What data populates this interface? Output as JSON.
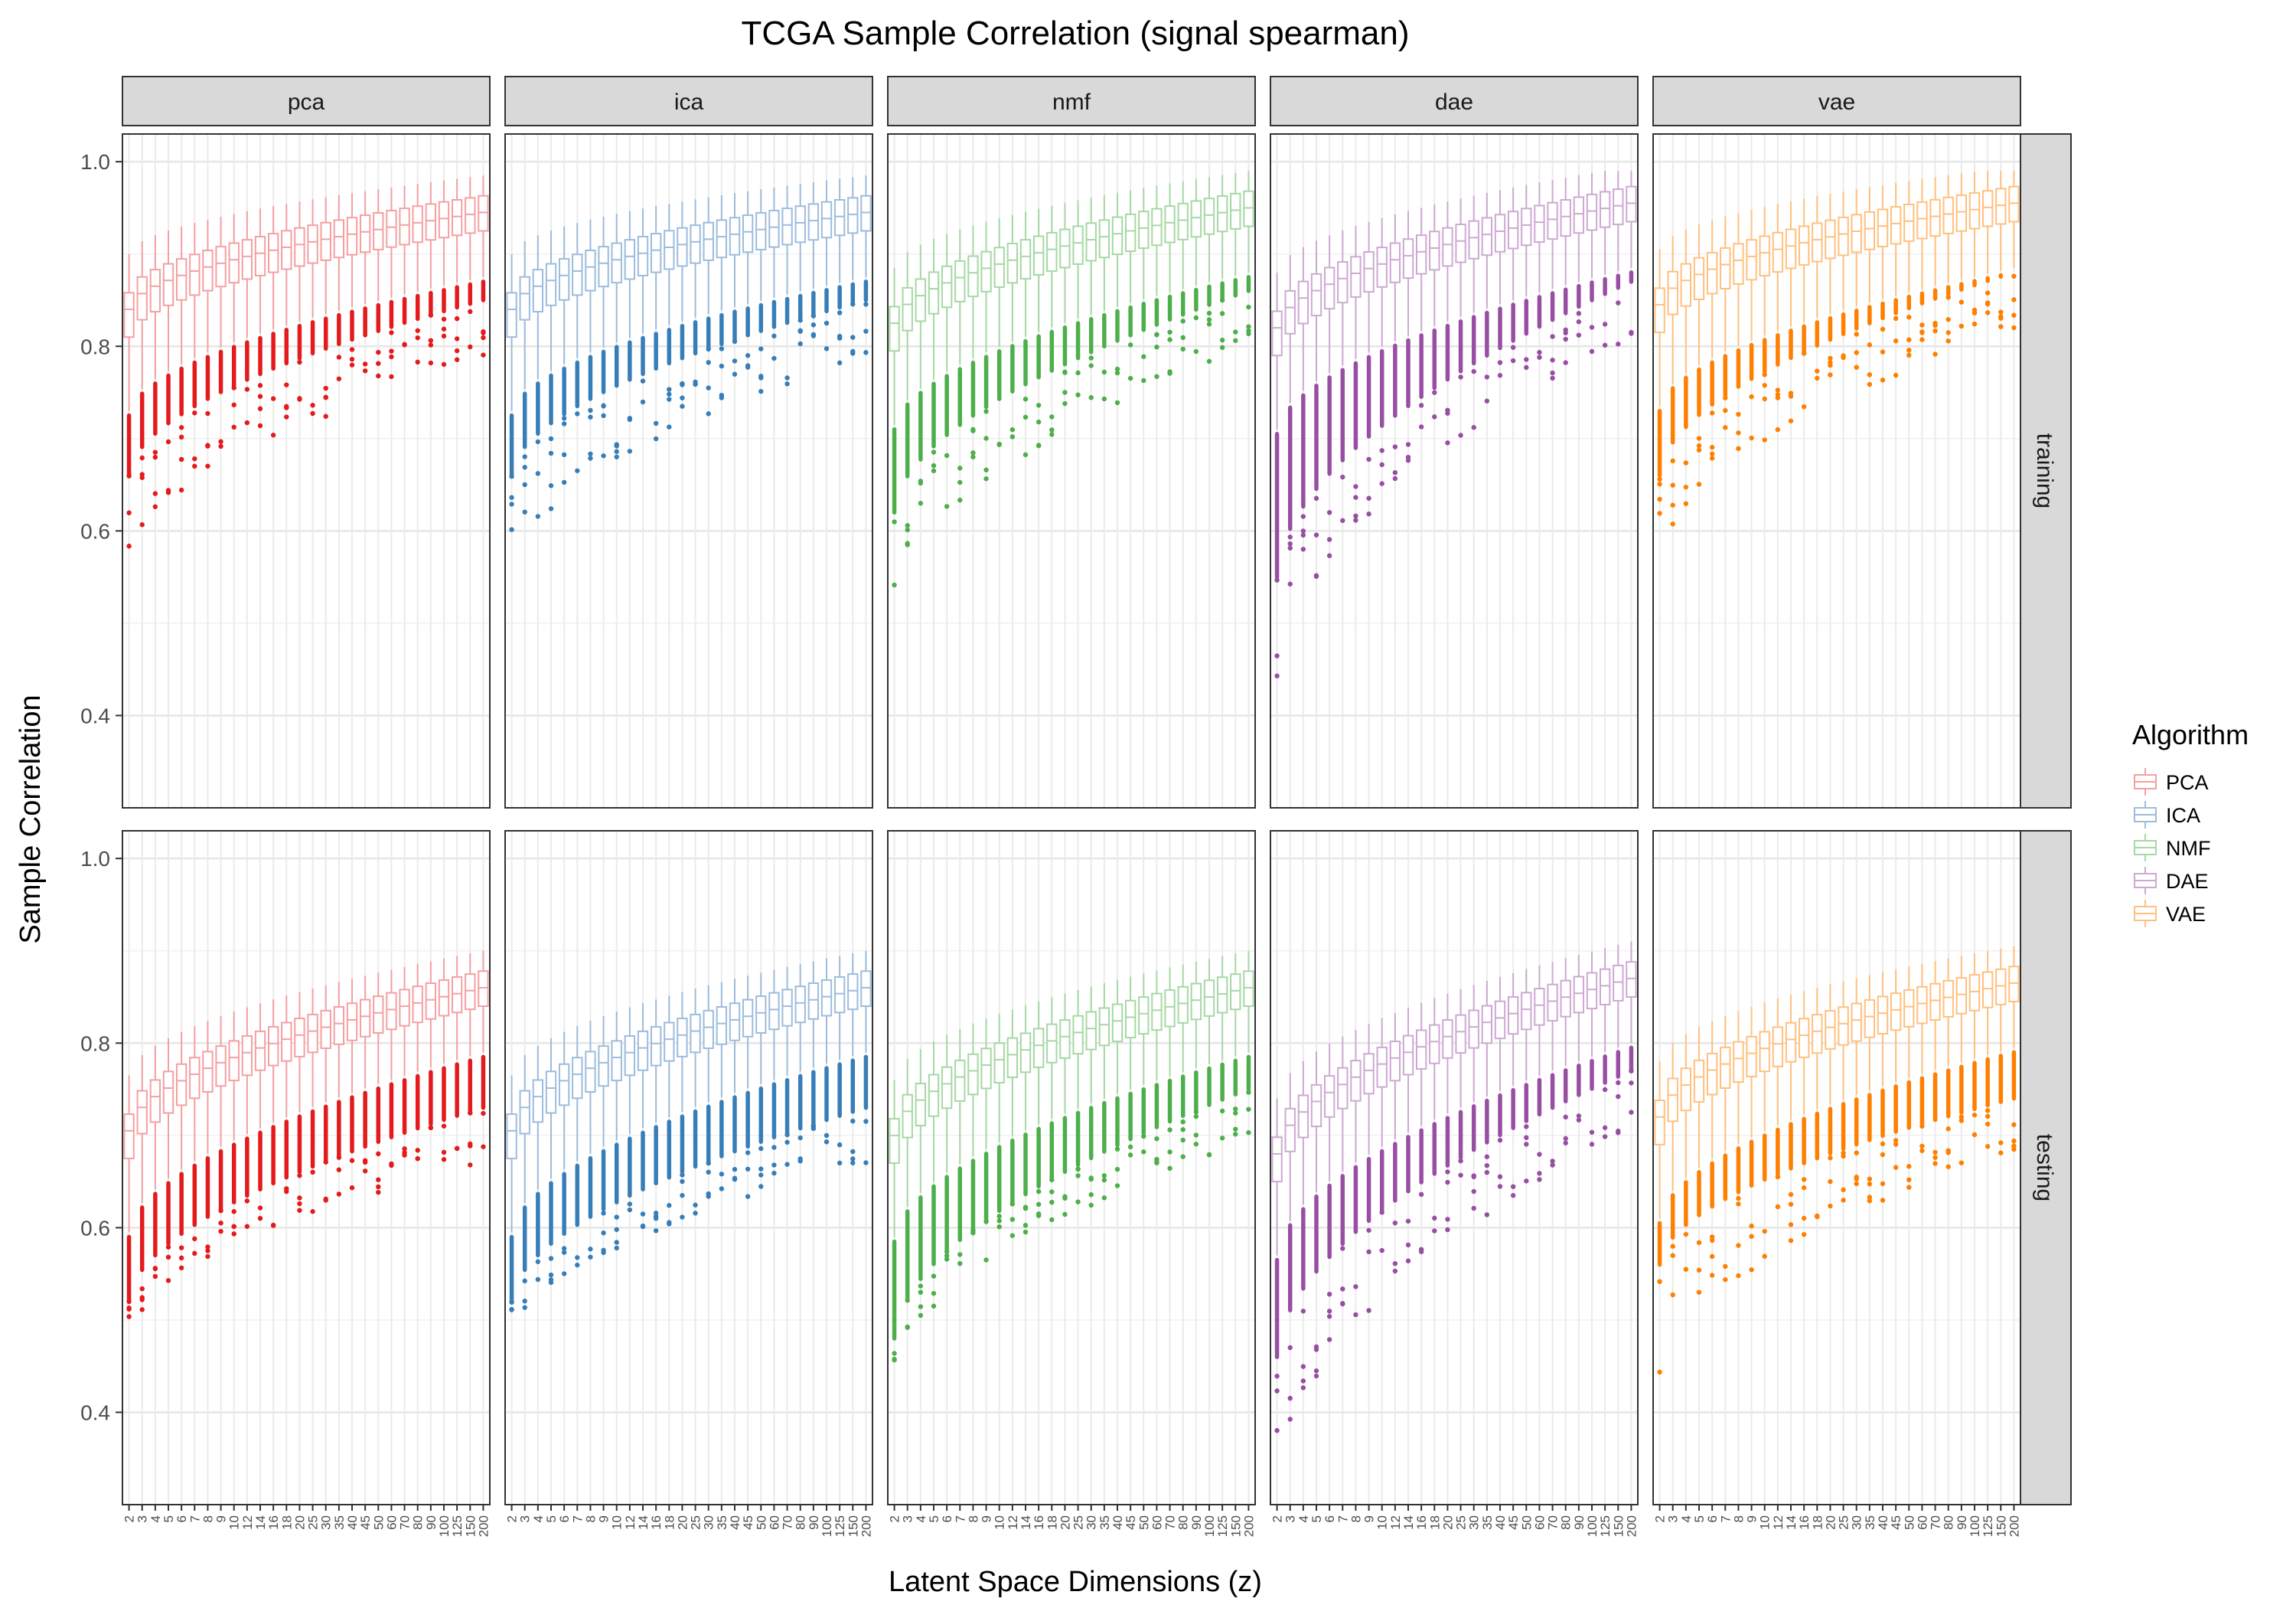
{
  "chart_data": {
    "type": "boxplot",
    "title": "TCGA Sample Correlation (signal spearman)",
    "xlabel": "Latent Space Dimensions (z)",
    "ylabel": "Sample Correlation",
    "ylim": [
      0.3,
      1.03
    ],
    "yticks": [
      0.4,
      0.6,
      0.8,
      1.0
    ],
    "ytick_labels": [
      "0.4",
      "0.6",
      "0.8",
      "1.0"
    ],
    "grid": true,
    "theme": "bw-facet-grid",
    "categories": [
      "2",
      "3",
      "4",
      "5",
      "6",
      "7",
      "8",
      "9",
      "10",
      "12",
      "14",
      "16",
      "18",
      "20",
      "25",
      "30",
      "35",
      "40",
      "45",
      "50",
      "60",
      "70",
      "80",
      "90",
      "100",
      "125",
      "150",
      "200"
    ],
    "columns": [
      "pca",
      "ica",
      "nmf",
      "dae",
      "vae"
    ],
    "rows": [
      "training",
      "testing"
    ],
    "legend": {
      "title": "Algorithm",
      "position": "right",
      "entries": [
        "PCA",
        "ICA",
        "NMF",
        "DAE",
        "VAE"
      ]
    },
    "series": [
      {
        "key": "pca",
        "name": "PCA",
        "box_color": "#F4A0A2",
        "point_color": "#E41A1C",
        "training": {
          "median_start": 0.84,
          "median_end": 0.945,
          "low_start": 0.66,
          "low_end": 0.85,
          "outlier_min_start": 0.55
        },
        "testing": {
          "median_start": 0.705,
          "median_end": 0.86,
          "low_start": 0.52,
          "low_end": 0.73,
          "outlier_min_start": 0.48
        }
      },
      {
        "key": "ica",
        "name": "ICA",
        "box_color": "#9DBCDC",
        "point_color": "#377EB8",
        "training": {
          "median_start": 0.84,
          "median_end": 0.945,
          "low_start": 0.66,
          "low_end": 0.85,
          "outlier_min_start": 0.55
        },
        "testing": {
          "median_start": 0.705,
          "median_end": 0.86,
          "low_start": 0.52,
          "low_end": 0.73,
          "outlier_min_start": 0.48
        }
      },
      {
        "key": "nmf",
        "name": "NMF",
        "box_color": "#A6D8A4",
        "point_color": "#4DAF4A",
        "training": {
          "median_start": 0.825,
          "median_end": 0.95,
          "low_start": 0.62,
          "low_end": 0.86,
          "outlier_min_start": 0.52
        },
        "testing": {
          "median_start": 0.7,
          "median_end": 0.86,
          "low_start": 0.48,
          "low_end": 0.75,
          "outlier_min_start": 0.44
        }
      },
      {
        "key": "dae",
        "name": "DAE",
        "box_color": "#CDA9D2",
        "point_color": "#984EA3",
        "training": {
          "median_start": 0.82,
          "median_end": 0.955,
          "low_start": 0.55,
          "low_end": 0.87,
          "outlier_min_start": 0.44
        },
        "testing": {
          "median_start": 0.68,
          "median_end": 0.87,
          "low_start": 0.46,
          "low_end": 0.77,
          "outlier_min_start": 0.32
        }
      },
      {
        "key": "vae",
        "name": "VAE",
        "box_color": "#FFC07F",
        "point_color": "#FF7F00",
        "training": {
          "median_start": 0.845,
          "median_end": 0.955,
          "low_start": 0.66,
          "low_end": 0.88,
          "outlier_min_start": 0.56
        },
        "testing": {
          "median_start": 0.72,
          "median_end": 0.865,
          "low_start": 0.56,
          "low_end": 0.74,
          "outlier_min_start": 0.44
        }
      }
    ]
  }
}
